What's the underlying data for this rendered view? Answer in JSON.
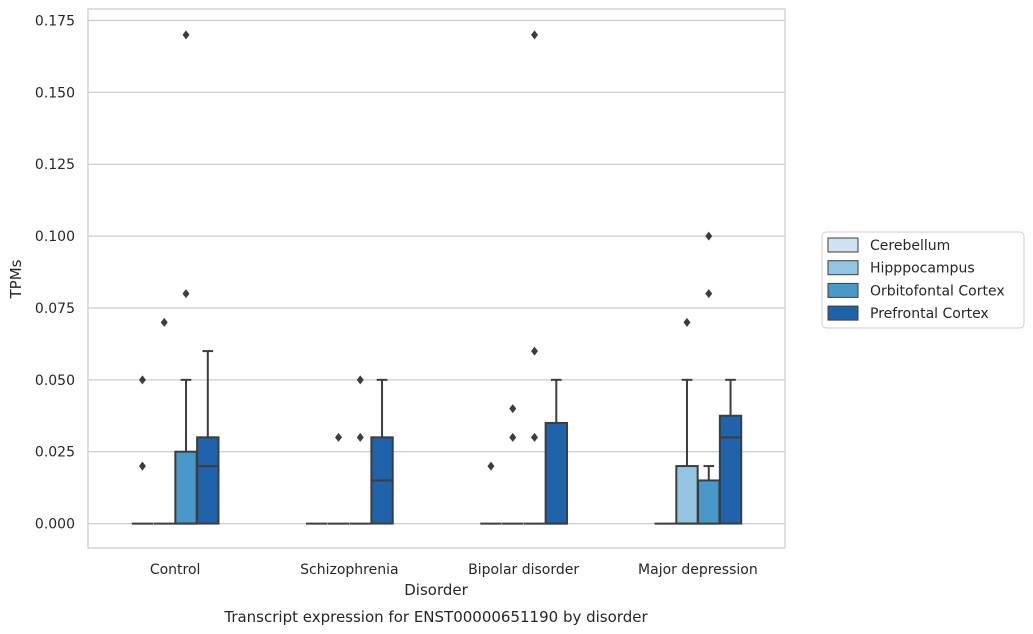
{
  "chart_data": {
    "type": "box",
    "title": "",
    "caption": "Transcript expression for ENST00000651190 by disorder",
    "xlabel": "Disorder",
    "ylabel": "TPMs",
    "ylim": [
      -0.0085,
      0.179
    ],
    "yticks": [
      0.0,
      0.025,
      0.05,
      0.075,
      0.1,
      0.125,
      0.15,
      0.175
    ],
    "ytick_labels": [
      "0.000",
      "0.025",
      "0.050",
      "0.075",
      "0.100",
      "0.125",
      "0.150",
      "0.175"
    ],
    "grid": "horizontal",
    "legend_position": "right",
    "categories": [
      "Control",
      "Schizophrenia",
      "Bipolar disorder",
      "Major depression"
    ],
    "series": [
      {
        "name": "Cerebellum",
        "color": "#d0e1f2",
        "boxes": [
          {
            "q1": 0,
            "median": 0,
            "q3": 0,
            "whisker_low": 0,
            "whisker_high": 0,
            "outliers": [
              0.02,
              0.05
            ]
          },
          {
            "q1": 0,
            "median": 0,
            "q3": 0,
            "whisker_low": 0,
            "whisker_high": 0,
            "outliers": []
          },
          {
            "q1": 0,
            "median": 0,
            "q3": 0,
            "whisker_low": 0,
            "whisker_high": 0,
            "outliers": [
              0.02
            ]
          },
          {
            "q1": 0,
            "median": 0,
            "q3": 0,
            "whisker_low": 0,
            "whisker_high": 0,
            "outliers": []
          }
        ]
      },
      {
        "name": "Hipppocampus",
        "color": "#94c4df",
        "boxes": [
          {
            "q1": 0,
            "median": 0,
            "q3": 0,
            "whisker_low": 0,
            "whisker_high": 0,
            "outliers": [
              0.07
            ]
          },
          {
            "q1": 0,
            "median": 0,
            "q3": 0,
            "whisker_low": 0,
            "whisker_high": 0,
            "outliers": [
              0.03
            ]
          },
          {
            "q1": 0,
            "median": 0,
            "q3": 0,
            "whisker_low": 0,
            "whisker_high": 0,
            "outliers": [
              0.03,
              0.04
            ]
          },
          {
            "q1": 0,
            "median": 0,
            "q3": 0.02,
            "whisker_low": 0,
            "whisker_high": 0.05,
            "outliers": [
              0.07
            ]
          }
        ]
      },
      {
        "name": "Orbitofontal Cortex",
        "color": "#4a98c9",
        "boxes": [
          {
            "q1": 0,
            "median": 0,
            "q3": 0.025,
            "whisker_low": 0,
            "whisker_high": 0.05,
            "outliers": [
              0.08,
              0.17
            ]
          },
          {
            "q1": 0,
            "median": 0,
            "q3": 0,
            "whisker_low": 0,
            "whisker_high": 0,
            "outliers": [
              0.03,
              0.05
            ]
          },
          {
            "q1": 0,
            "median": 0,
            "q3": 0,
            "whisker_low": 0,
            "whisker_high": 0,
            "outliers": [
              0.03,
              0.06,
              0.17
            ]
          },
          {
            "q1": 0,
            "median": 0,
            "q3": 0.015,
            "whisker_low": 0,
            "whisker_high": 0.02,
            "outliers": [
              0.08,
              0.1
            ]
          }
        ]
      },
      {
        "name": "Prefrontal Cortex",
        "color": "#2163aa",
        "boxes": [
          {
            "q1": 0,
            "median": 0.02,
            "q3": 0.03,
            "whisker_low": 0,
            "whisker_high": 0.06,
            "outliers": []
          },
          {
            "q1": 0,
            "median": 0.015,
            "q3": 0.03,
            "whisker_low": 0,
            "whisker_high": 0.05,
            "outliers": []
          },
          {
            "q1": 0,
            "median": 0,
            "q3": 0.035,
            "whisker_low": 0,
            "whisker_high": 0.05,
            "outliers": []
          },
          {
            "q1": 0,
            "median": 0.03,
            "q3": 0.0375,
            "whisker_low": 0,
            "whisker_high": 0.05,
            "outliers": []
          }
        ]
      }
    ]
  }
}
